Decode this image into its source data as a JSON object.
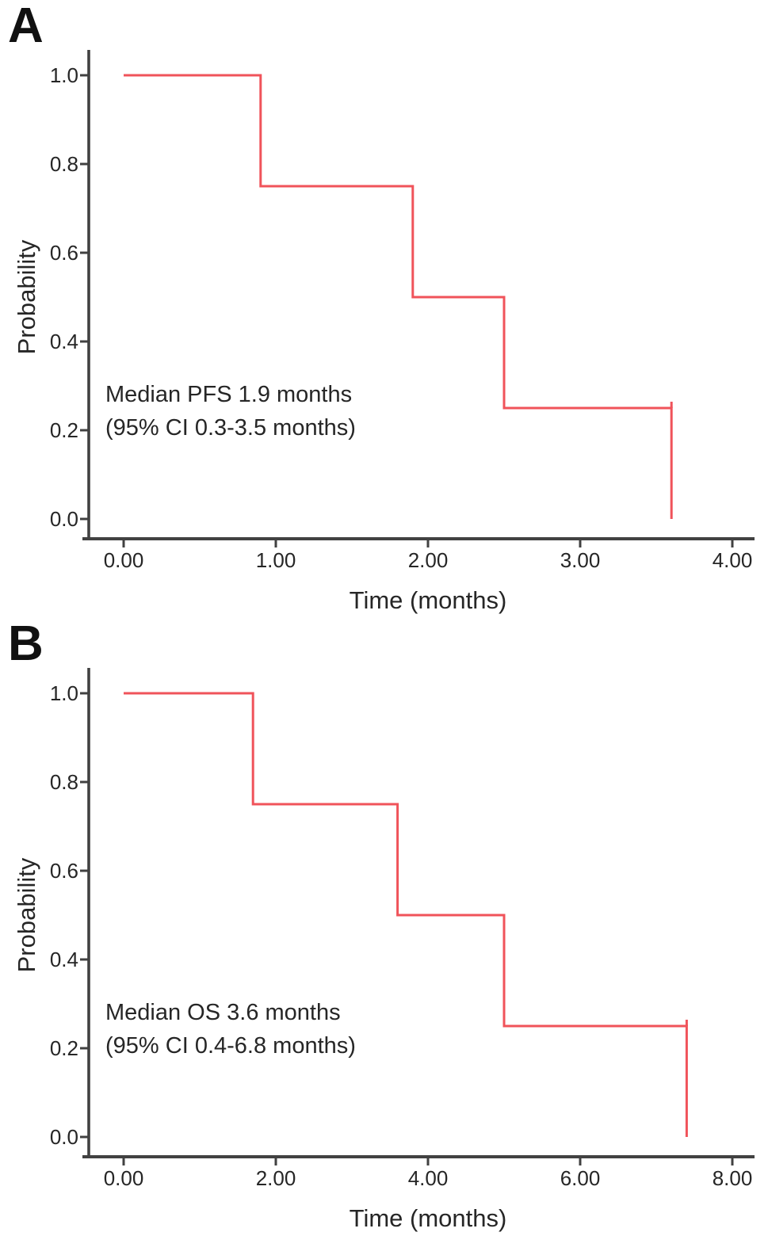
{
  "figure": {
    "background_color": "#ffffff",
    "curve_color": "#f0535a",
    "axis_color": "#414141",
    "text_color": "#262626",
    "letter_color": "#111111"
  },
  "panels": [
    {
      "letter": "A",
      "xlabel": "Time (months)",
      "ylabel": "Probability",
      "annotation_line1": "Median PFS 1.9 months",
      "annotation_line2": "(95% CI 0.3-3.5 months)"
    },
    {
      "letter": "B",
      "xlabel": "Time (months)",
      "ylabel": "Probability",
      "annotation_line1": "Median OS 3.6 months",
      "annotation_line2": "(95% CI 0.4-6.8 months)"
    }
  ],
  "chart_data": [
    {
      "type": "line",
      "subtype": "kaplan-meier-step",
      "panel": "A",
      "xlabel": "Time (months)",
      "ylabel": "Probability",
      "xlim": [
        0,
        4.15
      ],
      "ylim": [
        0.0,
        1.0
      ],
      "x_tick_values": [
        0,
        1,
        2,
        3,
        4
      ],
      "x_tick_labels": [
        "0.00",
        "1.00",
        "2.00",
        "3.00",
        "4.00"
      ],
      "y_tick_values": [
        0.0,
        0.2,
        0.4,
        0.6,
        0.8,
        1.0
      ],
      "y_tick_labels": [
        "0.0",
        "0.2",
        "0.4",
        "0.6",
        "0.8",
        "1.0"
      ],
      "grid": false,
      "legend": "none",
      "series": [
        {
          "name": "PFS",
          "color": "#f0535a",
          "event_times_months": [
            0.9,
            1.9,
            2.5,
            3.6
          ],
          "survival_after_event": [
            0.75,
            0.5,
            0.25,
            0.0
          ],
          "step_points": [
            [
              0,
              1.0
            ],
            [
              0.9,
              1.0
            ],
            [
              0.9,
              0.75
            ],
            [
              1.9,
              0.75
            ],
            [
              1.9,
              0.5
            ],
            [
              2.5,
              0.5
            ],
            [
              2.5,
              0.25
            ],
            [
              3.6,
              0.25
            ],
            [
              3.6,
              0.0
            ]
          ]
        }
      ],
      "median_months": 1.9,
      "ci95_months": "0.3-3.5",
      "annotation_line1": "Median PFS 1.9 months",
      "annotation_line2": "(95% CI 0.3-3.5 months)"
    },
    {
      "type": "line",
      "subtype": "kaplan-meier-step",
      "panel": "B",
      "xlabel": "Time (months)",
      "ylabel": "Probability",
      "xlim": [
        0,
        8.3
      ],
      "ylim": [
        0.0,
        1.0
      ],
      "x_tick_values": [
        0,
        2,
        4,
        6,
        8
      ],
      "x_tick_labels": [
        "0.00",
        "2.00",
        "4.00",
        "6.00",
        "8.00"
      ],
      "y_tick_values": [
        0.0,
        0.2,
        0.4,
        0.6,
        0.8,
        1.0
      ],
      "y_tick_labels": [
        "0.0",
        "0.2",
        "0.4",
        "0.6",
        "0.8",
        "1.0"
      ],
      "grid": false,
      "legend": "none",
      "series": [
        {
          "name": "OS",
          "color": "#f0535a",
          "event_times_months": [
            1.7,
            3.6,
            5.0,
            7.4
          ],
          "survival_after_event": [
            0.75,
            0.5,
            0.25,
            0.0
          ],
          "step_points": [
            [
              0,
              1.0
            ],
            [
              1.7,
              1.0
            ],
            [
              1.7,
              0.75
            ],
            [
              3.6,
              0.75
            ],
            [
              3.6,
              0.5
            ],
            [
              5.0,
              0.5
            ],
            [
              5.0,
              0.25
            ],
            [
              7.4,
              0.25
            ],
            [
              7.4,
              0.0
            ]
          ]
        }
      ],
      "median_months": 3.6,
      "ci95_months": "0.4-6.8",
      "annotation_line1": "Median OS 3.6 months",
      "annotation_line2": "(95% CI 0.4-6.8 months)"
    }
  ]
}
